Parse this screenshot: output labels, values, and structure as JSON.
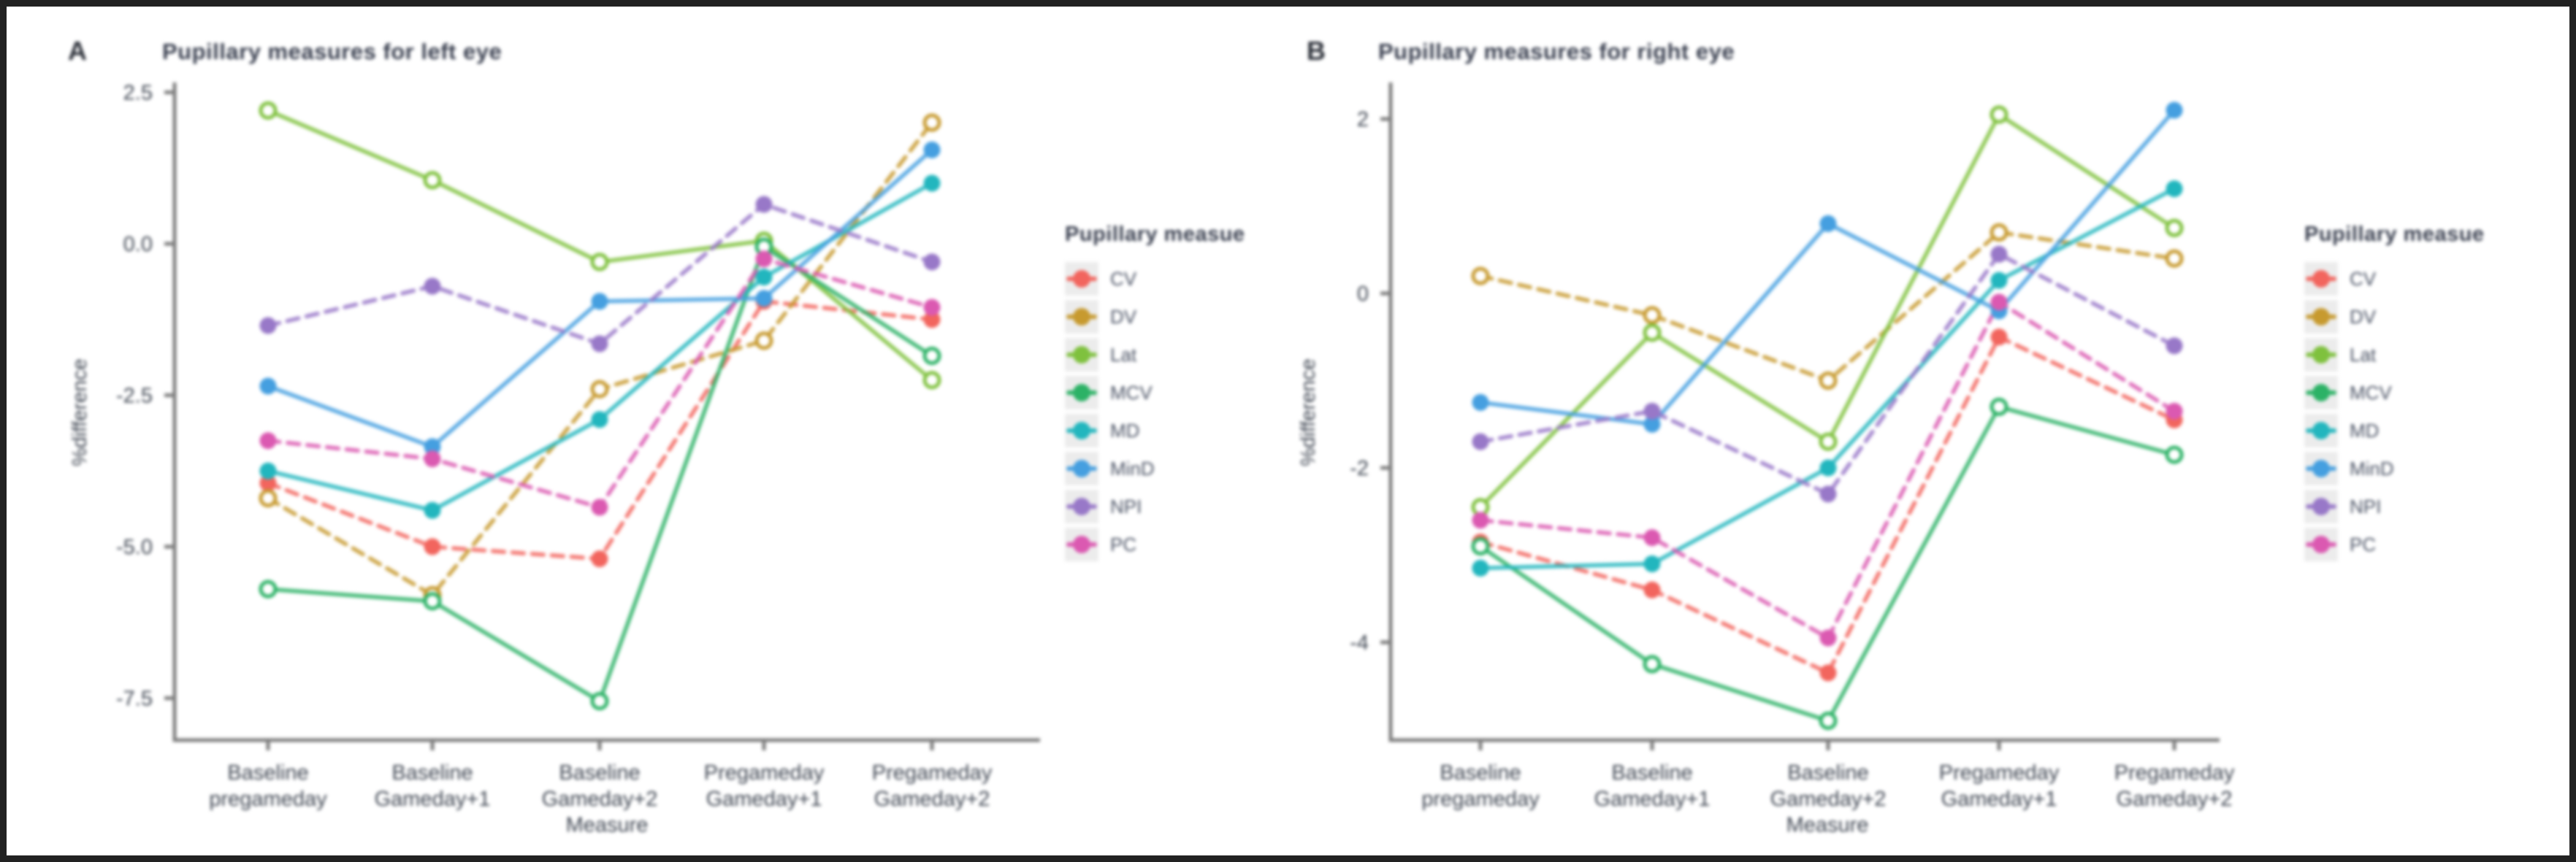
{
  "figure": {
    "background": "#ffffff",
    "border_color": "#222222",
    "axis_color": "#7d7d7d",
    "tick_text_color": "#3f4652"
  },
  "chart_data": [
    {
      "type": "line",
      "panel_label": "A",
      "title": "Pupillary measures for left eye",
      "xlabel": "Measure",
      "ylabel": "%difference",
      "legend_title": "Pupillary measue",
      "legend_position": "right",
      "grid": false,
      "categories": [
        "Baseline pregameday",
        "Baseline Gameday+1",
        "Baseline Gameday+2",
        "Pregameday Gameday+1",
        "Pregameday Gameday+2"
      ],
      "yticks": [
        {
          "label": "2.5",
          "v": 2.5
        },
        {
          "label": "0.0",
          "v": 0.0
        },
        {
          "label": "-2.5",
          "v": -2.5
        },
        {
          "label": "-5.0",
          "v": -5.0
        },
        {
          "label": "-7.5",
          "v": -7.5
        }
      ],
      "ylim": [
        -8.15,
        2.6
      ],
      "series": [
        {
          "name": "CV",
          "color": "#F2655E",
          "marker": "filled",
          "line_style": "dashed",
          "values": [
            -3.95,
            -5.0,
            -5.2,
            -0.95,
            -1.25
          ]
        },
        {
          "name": "DV",
          "color": "#C79A2F",
          "marker": "open",
          "line_style": "dashed",
          "values": [
            -4.2,
            -5.8,
            -2.4,
            -1.6,
            2.0
          ]
        },
        {
          "name": "Lat",
          "color": "#7FC13E",
          "marker": "open",
          "line_style": "solid",
          "values": [
            2.2,
            1.05,
            -0.3,
            0.05,
            -2.25
          ]
        },
        {
          "name": "MCV",
          "color": "#2CB266",
          "marker": "open",
          "line_style": "solid",
          "values": [
            -5.7,
            -5.9,
            -7.55,
            -0.05,
            -1.85
          ]
        },
        {
          "name": "MD",
          "color": "#22B6BE",
          "marker": "filled",
          "line_style": "solid",
          "values": [
            -3.75,
            -4.4,
            -2.9,
            -0.55,
            1.0
          ]
        },
        {
          "name": "MinD",
          "color": "#459FE0",
          "marker": "filled",
          "line_style": "solid",
          "values": [
            -2.35,
            -3.35,
            -0.95,
            -0.9,
            1.55
          ]
        },
        {
          "name": "NPI",
          "color": "#9878C8",
          "marker": "filled",
          "line_style": "dashed",
          "values": [
            -1.35,
            -0.7,
            -1.65,
            0.65,
            -0.3
          ]
        },
        {
          "name": "PC",
          "color": "#DB59B1",
          "marker": "filled",
          "line_style": "dashed",
          "values": [
            -3.25,
            -3.55,
            -4.35,
            -0.25,
            -1.05
          ]
        }
      ]
    },
    {
      "type": "line",
      "panel_label": "B",
      "title": "Pupillary measures for right eye",
      "xlabel": "Measure",
      "ylabel": "%difference",
      "legend_title": "Pupillary measue",
      "legend_position": "right",
      "grid": false,
      "categories": [
        "Baseline pregameday",
        "Baseline Gameday+1",
        "Baseline Gameday+2",
        "Pregameday Gameday+1",
        "Pregameday Gameday+2"
      ],
      "yticks": [
        {
          "label": "2",
          "v": 2
        },
        {
          "label": "0",
          "v": 0
        },
        {
          "label": "-2",
          "v": -2
        },
        {
          "label": "-4",
          "v": -4
        }
      ],
      "ylim": [
        -5.1,
        2.4
      ],
      "series": [
        {
          "name": "CV",
          "color": "#F2655E",
          "marker": "filled",
          "line_style": "dashed",
          "values": [
            -2.85,
            -3.4,
            -4.35,
            -0.5,
            -1.45
          ]
        },
        {
          "name": "DV",
          "color": "#C79A2F",
          "marker": "open",
          "line_style": "dashed",
          "values": [
            0.2,
            -0.25,
            -1.0,
            0.7,
            0.4
          ]
        },
        {
          "name": "Lat",
          "color": "#7FC13E",
          "marker": "open",
          "line_style": "solid",
          "values": [
            -2.45,
            -0.45,
            -1.7,
            2.05,
            0.75
          ]
        },
        {
          "name": "MCV",
          "color": "#2CB266",
          "marker": "open",
          "line_style": "solid",
          "values": [
            -2.9,
            -4.25,
            -4.9,
            -1.3,
            -1.85
          ]
        },
        {
          "name": "MD",
          "color": "#22B6BE",
          "marker": "filled",
          "line_style": "solid",
          "values": [
            -3.15,
            -3.1,
            -2.0,
            0.15,
            1.2
          ]
        },
        {
          "name": "MinD",
          "color": "#459FE0",
          "marker": "filled",
          "line_style": "solid",
          "values": [
            -1.25,
            -1.5,
            0.8,
            -0.2,
            2.1
          ]
        },
        {
          "name": "NPI",
          "color": "#9878C8",
          "marker": "filled",
          "line_style": "dashed",
          "values": [
            -1.7,
            -1.35,
            -2.3,
            0.45,
            -0.6
          ]
        },
        {
          "name": "PC",
          "color": "#DB59B1",
          "marker": "filled",
          "line_style": "dashed",
          "values": [
            -2.6,
            -2.8,
            -3.95,
            -0.1,
            -1.35
          ]
        }
      ]
    }
  ]
}
